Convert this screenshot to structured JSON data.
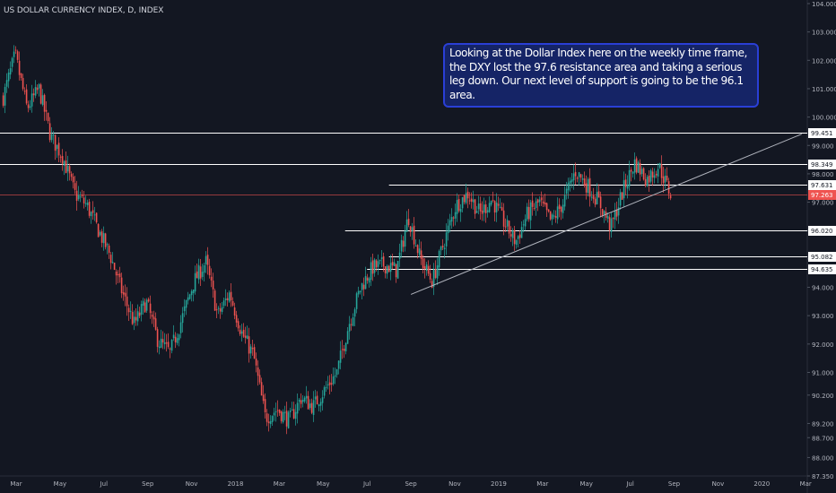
{
  "symbol_title": "US DOLLAR CURRENCY INDEX, D, INDEX",
  "annotation": "Looking at the Dollar Index here on the weekly time frame, the DXY lost the 97.6 resistance area and taking a serious leg down. Our next level of support is going to be the 96.1 area.",
  "colors": {
    "background": "#131722",
    "up_candle": "#26a69a",
    "down_candle": "#ef5350",
    "level_line": "#ffffff",
    "trendline": "#b2b5be",
    "price_line": "#ef5350",
    "axis_text": "#b2b5be",
    "note_fill": "#152466",
    "note_border": "#2a3fd6"
  },
  "chart_data": {
    "type": "candlestick",
    "title": "US DOLLAR CURRENCY INDEX, D, INDEX",
    "x_ticks": [
      "Mar",
      "May",
      "Jul",
      "Sep",
      "Nov",
      "2018",
      "Mar",
      "May",
      "Jul",
      "Sep",
      "Nov",
      "2019",
      "Mar",
      "May",
      "Jul",
      "Sep",
      "Nov",
      "2020",
      "Mar"
    ],
    "x_range": [
      "2017-02",
      "2020-03"
    ],
    "y_ticks": [
      104.0,
      103.0,
      102.0,
      101.0,
      100.0,
      99.0,
      98.0,
      97.0,
      96.0,
      95.0,
      94.0,
      93.0,
      92.0,
      91.0,
      90.2,
      89.2,
      88.7,
      88.0,
      87.35
    ],
    "y_tick_labels": [
      "104.000",
      "103.000",
      "102.000",
      "101.000",
      "100.000",
      "99.000",
      "98.000",
      "97.000",
      "96.000",
      "95.000",
      "94.000",
      "93.000",
      "92.000",
      "91.000",
      "90.200",
      "89.200",
      "88.700",
      "88.000",
      "87.350"
    ],
    "ylim": [
      87.35,
      104.0
    ],
    "last_price": 97.263,
    "last_price_label": "97.263",
    "horizontal_levels": [
      {
        "value": 99.451,
        "label": "99.451",
        "from": "2017-02"
      },
      {
        "value": 98.349,
        "label": "98.349",
        "from": "2017-02"
      },
      {
        "value": 97.631,
        "label": "97.631",
        "from": "2018-08"
      },
      {
        "value": 96.02,
        "label": "96.020",
        "from": "2018-06"
      },
      {
        "value": 95.082,
        "label": "95.082",
        "from": "2018-08"
      },
      {
        "value": 94.635,
        "label": "94.635",
        "from": "2018-07"
      }
    ],
    "trendline": {
      "start": [
        "2018-09",
        93.75
      ],
      "end": [
        "2020-02",
        99.4
      ]
    },
    "price_path": [
      [
        "2017-02",
        100.7
      ],
      [
        "2017-03",
        102.2
      ],
      [
        "2017-03",
        100.3
      ],
      [
        "2017-04",
        101.0
      ],
      [
        "2017-04",
        99.3
      ],
      [
        "2017-05",
        98.6
      ],
      [
        "2017-05",
        97.3
      ],
      [
        "2017-06",
        96.9
      ],
      [
        "2017-06",
        96.0
      ],
      [
        "2017-07",
        95.1
      ],
      [
        "2017-07",
        93.8
      ],
      [
        "2017-08",
        92.7
      ],
      [
        "2017-08",
        93.5
      ],
      [
        "2017-09",
        92.1
      ],
      [
        "2017-09",
        91.7
      ],
      [
        "2017-10",
        92.9
      ],
      [
        "2017-10",
        94.2
      ],
      [
        "2017-11",
        94.9
      ],
      [
        "2017-11",
        93.0
      ],
      [
        "2017-12",
        93.8
      ],
      [
        "2017-12",
        92.4
      ],
      [
        "2018-01",
        91.6
      ],
      [
        "2018-01",
        89.4
      ],
      [
        "2018-02",
        89.7
      ],
      [
        "2018-02",
        89.3
      ],
      [
        "2018-03",
        90.1
      ],
      [
        "2018-03",
        89.8
      ],
      [
        "2018-04",
        90.4
      ],
      [
        "2018-04",
        91.0
      ],
      [
        "2018-05",
        92.7
      ],
      [
        "2018-05",
        94.0
      ],
      [
        "2018-06",
        94.7
      ],
      [
        "2018-07",
        94.8
      ],
      [
        "2018-07",
        94.6
      ],
      [
        "2018-08",
        96.5
      ],
      [
        "2018-08",
        95.0
      ],
      [
        "2018-09",
        94.2
      ],
      [
        "2018-10",
        95.6
      ],
      [
        "2018-10",
        96.9
      ],
      [
        "2018-11",
        97.3
      ],
      [
        "2018-11",
        96.6
      ],
      [
        "2018-12",
        97.1
      ],
      [
        "2018-12",
        96.3
      ],
      [
        "2019-01",
        95.6
      ],
      [
        "2019-02",
        96.6
      ],
      [
        "2019-03",
        97.0
      ],
      [
        "2019-03",
        96.3
      ],
      [
        "2019-04",
        97.0
      ],
      [
        "2019-05",
        98.1
      ],
      [
        "2019-05",
        97.6
      ],
      [
        "2019-06",
        97.0
      ],
      [
        "2019-06",
        96.1
      ],
      [
        "2019-07",
        97.4
      ],
      [
        "2019-08",
        98.4
      ],
      [
        "2019-08",
        97.8
      ],
      [
        "2019-08",
        98.3
      ],
      [
        "2019-09",
        97.263
      ]
    ]
  }
}
